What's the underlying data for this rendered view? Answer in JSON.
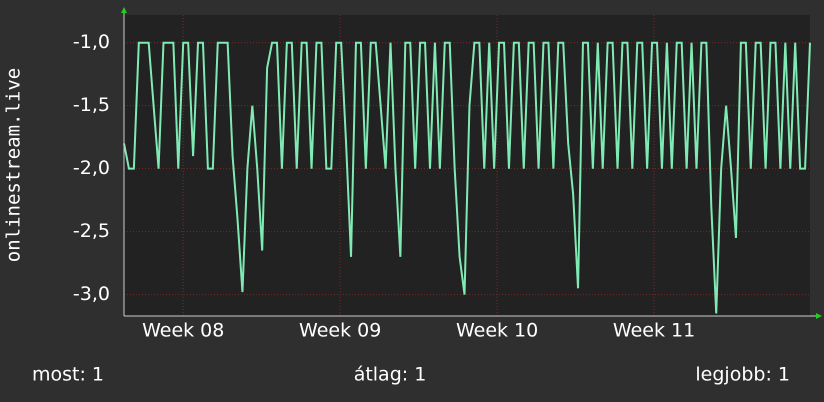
{
  "chart_data": {
    "type": "line",
    "y_label": "onlinestream.live",
    "xlim": [
      0,
      139
    ],
    "xticks": [
      {
        "value": 12,
        "label": "Week 08"
      },
      {
        "value": 43.8,
        "label": "Week 09"
      },
      {
        "value": 75.6,
        "label": "Week 10"
      },
      {
        "value": 107.4,
        "label": "Week 11"
      }
    ],
    "ylim": [
      -3.17,
      -0.78
    ],
    "yticks": [
      {
        "value": -1,
        "label": "-1,0"
      },
      {
        "value": -1.5,
        "label": "-1,5"
      },
      {
        "value": -2,
        "label": "-2,0"
      },
      {
        "value": -2.5,
        "label": "-2,5"
      },
      {
        "value": -3,
        "label": "-3,0"
      }
    ],
    "grid": true,
    "series": [
      {
        "color": "#80eab4",
        "values": [
          -1.8,
          -2,
          -2,
          -1,
          -1,
          -1,
          -1.5,
          -2,
          -1,
          -1,
          -1,
          -2,
          -1,
          -1,
          -1.9,
          -1,
          -1,
          -2,
          -2,
          -1,
          -1,
          -1,
          -1.9,
          -2.4,
          -2.98,
          -2,
          -1.5,
          -2,
          -2.65,
          -1.2,
          -1,
          -1,
          -2,
          -1,
          -1,
          -2,
          -1,
          -1,
          -2,
          -1,
          -1,
          -2,
          -2,
          -1,
          -1,
          -1.8,
          -2.7,
          -1,
          -1,
          -2,
          -1,
          -1,
          -1.5,
          -2,
          -1,
          -2,
          -2.7,
          -1,
          -1,
          -2,
          -1,
          -1,
          -2,
          -1,
          -2,
          -1,
          -1,
          -2,
          -2.7,
          -3,
          -1.5,
          -1,
          -1,
          -2,
          -1,
          -2,
          -1,
          -1,
          -2,
          -1,
          -1,
          -2,
          -1,
          -1,
          -2,
          -1,
          -1,
          -2,
          -1,
          -1,
          -1.8,
          -2.2,
          -2.95,
          -1,
          -1,
          -2,
          -1,
          -2,
          -1,
          -1,
          -2,
          -1,
          -1,
          -2,
          -1,
          -1,
          -2,
          -1,
          -1,
          -2,
          -1,
          -2,
          -1,
          -1,
          -2,
          -1,
          -2,
          -1,
          -1,
          -2.3,
          -3.15,
          -2,
          -1.5,
          -2,
          -2.55,
          -1,
          -1,
          -2,
          -1,
          -1,
          -2,
          -1,
          -1,
          -2,
          -1,
          -2,
          -1,
          -2,
          -2,
          -1
        ]
      }
    ],
    "legend": [
      "most: 1",
      "átlag: 1",
      "legjobb: 1"
    ]
  }
}
